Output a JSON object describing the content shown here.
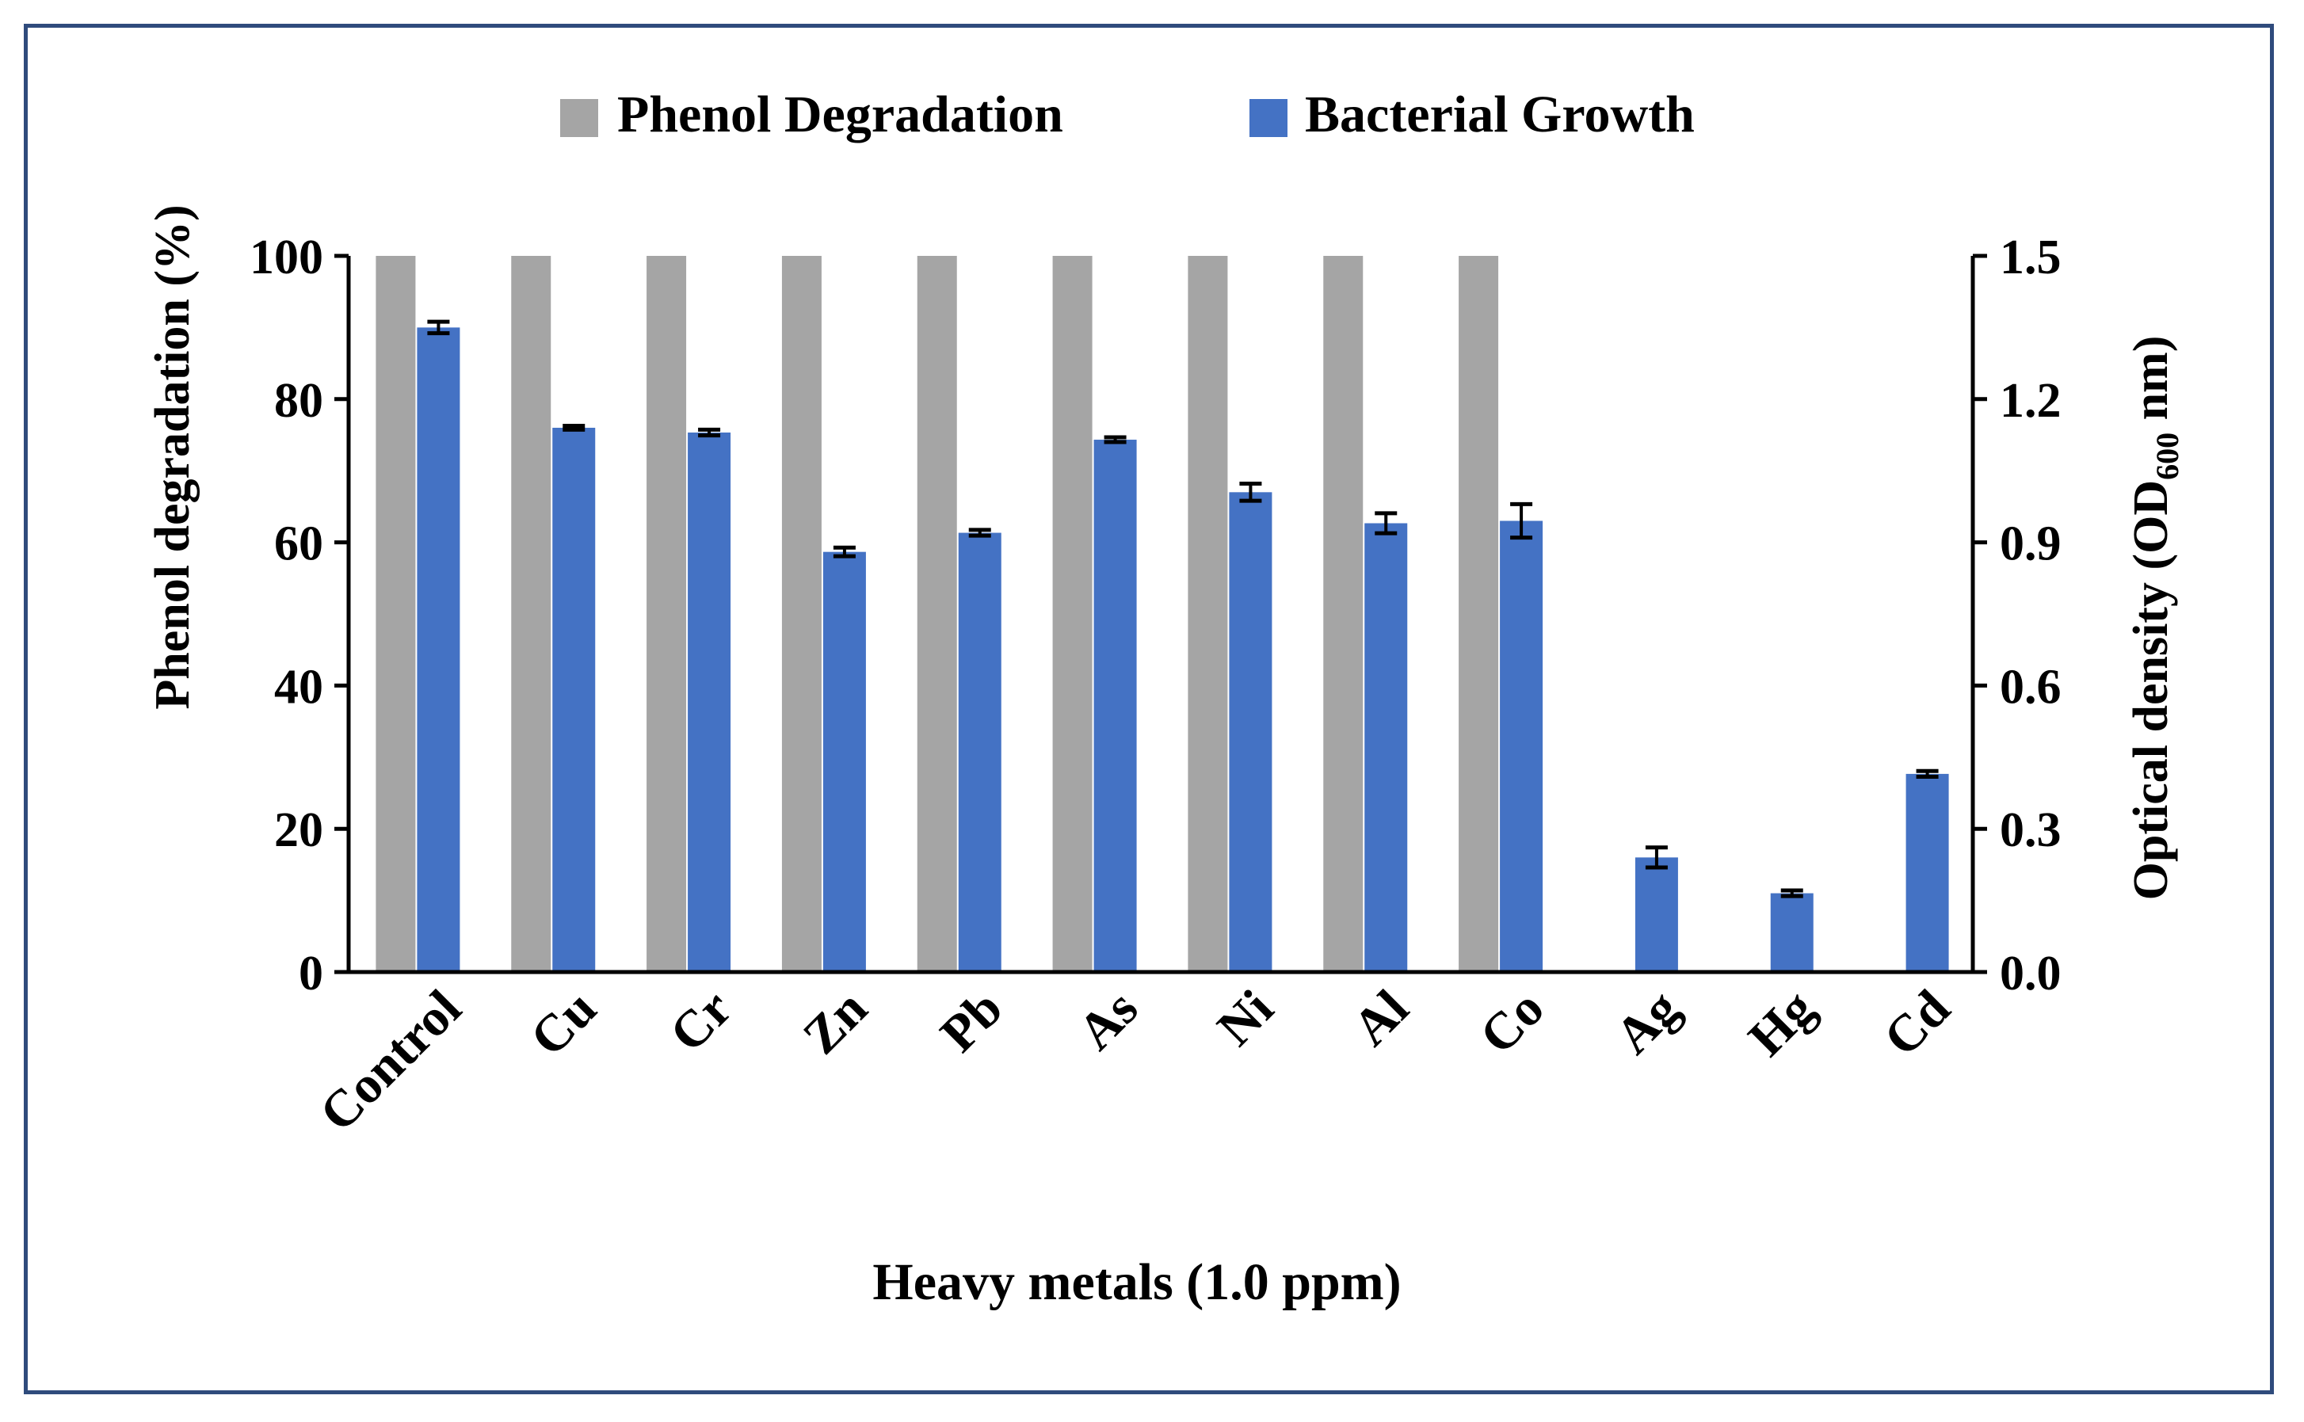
{
  "chart_data": {
    "type": "bar",
    "title": "",
    "xlabel": "Heavy metals (1.0 ppm)",
    "ylabel_left": "Phenol degradation (%)",
    "ylabel_right_prefix": "Optical density (OD",
    "ylabel_right_subscript": "600",
    "ylabel_right_suffix": " nm)",
    "categories": [
      "Control",
      "Cu",
      "Cr",
      "Zn",
      "Pb",
      "As",
      "Ni",
      "Al",
      "Co",
      "Ag",
      "Hg",
      "Cd"
    ],
    "ylim_left": [
      0,
      100
    ],
    "ylim_right": [
      0,
      1.5
    ],
    "yticks_left": [
      "0",
      "20",
      "40",
      "60",
      "80",
      "100"
    ],
    "yticks_right": [
      "0.0",
      "0.3",
      "0.6",
      "0.9",
      "1.2",
      "1.5"
    ],
    "legend_position": "top-center",
    "series": [
      {
        "name": "Phenol Degradation",
        "axis": "left",
        "color": "#a5a5a5",
        "values": [
          100,
          100,
          100,
          100,
          100,
          100,
          100,
          100,
          100,
          0,
          0,
          0
        ]
      },
      {
        "name": "Bacterial Growth",
        "axis": "right",
        "color": "#4472c4",
        "values": [
          1.35,
          1.14,
          1.13,
          0.88,
          0.92,
          1.115,
          1.005,
          0.94,
          0.945,
          0.24,
          0.165,
          0.415
        ],
        "errors": [
          0.012,
          0.004,
          0.006,
          0.009,
          0.006,
          0.005,
          0.018,
          0.021,
          0.035,
          0.021,
          0.006,
          0.006
        ]
      }
    ]
  }
}
